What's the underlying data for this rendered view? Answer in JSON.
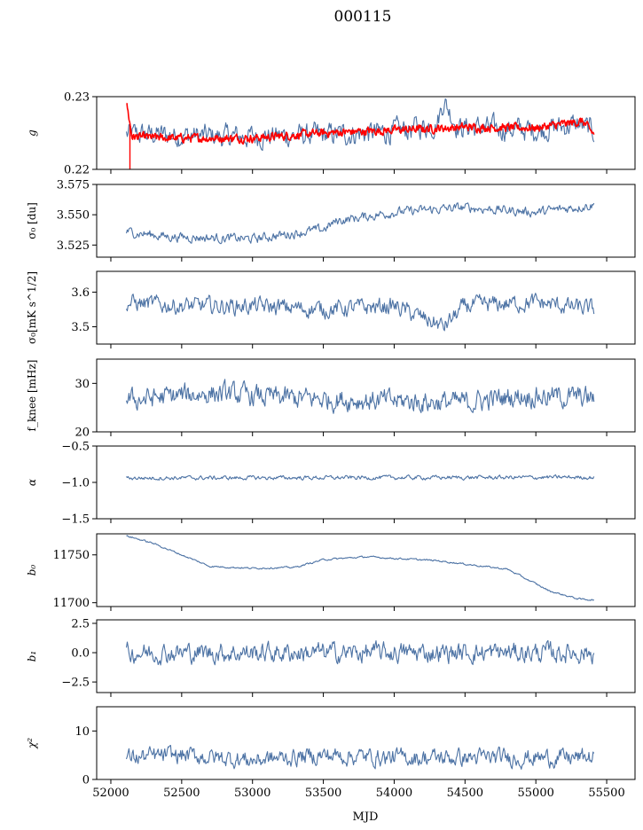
{
  "title": "000115",
  "xlabel": "MJD",
  "colors": {
    "main": "#4c72a4",
    "overlay": "#ff0000",
    "axis": "#000000"
  },
  "chart_data": {
    "type": "line",
    "shared_x": true,
    "xlim": [
      51900,
      55700
    ],
    "xticks": [
      52000,
      52500,
      53000,
      53500,
      54000,
      54500,
      55000,
      55500
    ],
    "x_range": [
      52110,
      55410
    ],
    "panels": [
      {
        "ylabel": "g",
        "ylim": [
          0.22,
          0.23
        ],
        "yticks": [
          0.22,
          0.23
        ],
        "ytick_labels": [
          "0.22",
          "0.23"
        ],
        "series": [
          {
            "role": "main",
            "anchors": [
              [
                52110,
                0.2248
              ],
              [
                52300,
                0.2248
              ],
              [
                52800,
                0.2245
              ],
              [
                53500,
                0.2247
              ],
              [
                54000,
                0.2252
              ],
              [
                54300,
                0.2262
              ],
              [
                54350,
                0.2295
              ],
              [
                54450,
                0.2258
              ],
              [
                55000,
                0.2254
              ],
              [
                55300,
                0.2262
              ],
              [
                55410,
                0.2252
              ]
            ],
            "noise": 0.0014
          },
          {
            "role": "overlay",
            "anchors": [
              [
                52110,
                0.2292
              ],
              [
                52150,
                0.2245
              ],
              [
                52400,
                0.2243
              ],
              [
                53000,
                0.2243
              ],
              [
                53500,
                0.225
              ],
              [
                54000,
                0.2254
              ],
              [
                54500,
                0.2258
              ],
              [
                55000,
                0.2257
              ],
              [
                55330,
                0.2266
              ],
              [
                55410,
                0.2248
              ]
            ],
            "noise": 0.0005,
            "spike": {
              "x": 52135,
              "y": 0.22
            }
          }
        ]
      },
      {
        "ylabel": "σ₀ [du]",
        "ylim": [
          3.515,
          3.575
        ],
        "yticks": [
          3.525,
          3.55,
          3.575
        ],
        "ytick_labels": [
          "3.525",
          "3.550",
          "3.575"
        ],
        "series": [
          {
            "role": "main",
            "anchors": [
              [
                52110,
                3.536
              ],
              [
                52400,
                3.532
              ],
              [
                53000,
                3.53
              ],
              [
                53500,
                3.538
              ],
              [
                53600,
                3.545
              ],
              [
                54000,
                3.552
              ],
              [
                54500,
                3.556
              ],
              [
                55000,
                3.552
              ],
              [
                55400,
                3.558
              ]
            ],
            "noise": 0.0035
          }
        ]
      },
      {
        "ylabel": "σ₀[mK s^1/2]",
        "ylim": [
          3.45,
          3.66
        ],
        "yticks": [
          3.5,
          3.6
        ],
        "ytick_labels": [
          "3.5",
          "3.6"
        ],
        "series": [
          {
            "role": "main",
            "anchors": [
              [
                52110,
                3.57
              ],
              [
                52500,
                3.56
              ],
              [
                53000,
                3.56
              ],
              [
                53500,
                3.55
              ],
              [
                54000,
                3.56
              ],
              [
                54350,
                3.5
              ],
              [
                54500,
                3.56
              ],
              [
                55000,
                3.57
              ],
              [
                55400,
                3.55
              ]
            ],
            "noise": 0.022
          }
        ]
      },
      {
        "ylabel": "f_knee [mHz]",
        "ylim": [
          20,
          35
        ],
        "yticks": [
          20,
          30
        ],
        "ytick_labels": [
          "20",
          "30"
        ],
        "series": [
          {
            "role": "main",
            "anchors": [
              [
                52110,
                26.5
              ],
              [
                52700,
                28
              ],
              [
                53200,
                27
              ],
              [
                53800,
                26.5
              ],
              [
                54500,
                26
              ],
              [
                54900,
                27.5
              ],
              [
                55400,
                27
              ]
            ],
            "noise": 2.0
          }
        ]
      },
      {
        "ylabel": "α",
        "ylim": [
          -1.5,
          -0.5
        ],
        "yticks": [
          -1.5,
          -1.0,
          -0.5
        ],
        "ytick_labels": [
          "−1.5",
          "−1.0",
          "−0.5"
        ],
        "series": [
          {
            "role": "main",
            "anchors": [
              [
                52110,
                -0.94
              ],
              [
                55400,
                -0.93
              ]
            ],
            "noise": 0.025
          }
        ]
      },
      {
        "ylabel": "b₀",
        "ylim": [
          11696,
          11772
        ],
        "yticks": [
          11700,
          11750
        ],
        "ytick_labels": [
          "11700",
          "11750"
        ],
        "series": [
          {
            "role": "main",
            "anchors": [
              [
                52110,
                11770
              ],
              [
                52300,
                11762
              ],
              [
                52500,
                11750
              ],
              [
                52700,
                11738
              ],
              [
                53000,
                11736
              ],
              [
                53300,
                11737
              ],
              [
                53500,
                11745
              ],
              [
                53800,
                11748
              ],
              [
                54300,
                11744
              ],
              [
                54800,
                11735
              ],
              [
                55100,
                11712
              ],
              [
                55300,
                11704
              ],
              [
                55400,
                11703
              ]
            ],
            "noise": 0.8
          }
        ]
      },
      {
        "ylabel": "b₁",
        "ylim": [
          -3.4,
          2.8
        ],
        "yticks": [
          -2.5,
          0.0,
          2.5
        ],
        "ytick_labels": [
          "−2.5",
          "0.0",
          "2.5"
        ],
        "series": [
          {
            "role": "main",
            "anchors": [
              [
                52110,
                0.0
              ],
              [
                55400,
                0.0
              ]
            ],
            "noise": 0.75
          }
        ]
      },
      {
        "ylabel": "χ²",
        "ylim": [
          0,
          15
        ],
        "yticks": [
          0,
          10
        ],
        "ytick_labels": [
          "0",
          "10"
        ],
        "series": [
          {
            "role": "main",
            "anchors": [
              [
                52110,
                4.5
              ],
              [
                52500,
                5
              ],
              [
                53000,
                4
              ],
              [
                53500,
                5
              ],
              [
                54000,
                4.5
              ],
              [
                54500,
                4.5
              ],
              [
                55000,
                4.5
              ],
              [
                55400,
                4.5
              ]
            ],
            "noise": 1.6
          }
        ]
      }
    ]
  }
}
